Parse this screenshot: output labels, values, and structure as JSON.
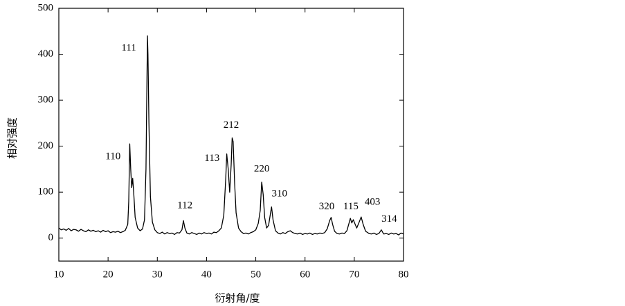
{
  "chart_data": {
    "type": "line",
    "xlabel": "衍射角/度",
    "ylabel": "相对强度",
    "xlim": [
      10,
      80
    ],
    "ylim": [
      -50,
      500
    ],
    "xticks": [
      10,
      20,
      30,
      40,
      50,
      60,
      70,
      80
    ],
    "yticks": [
      0,
      100,
      200,
      300,
      400,
      500
    ],
    "color": "#000000",
    "x": [
      10,
      10.5,
      11,
      11.5,
      12,
      12.5,
      13,
      13.5,
      14,
      14.5,
      15,
      15.5,
      16,
      16.5,
      17,
      17.5,
      18,
      18.5,
      19,
      19.5,
      20,
      20.5,
      21,
      21.5,
      22,
      22.5,
      23,
      23.5,
      24,
      24.2,
      24.4,
      24.6,
      24.8,
      25,
      25.2,
      25.5,
      26,
      26.5,
      27,
      27.4,
      27.7,
      27.9,
      28,
      28.1,
      28.3,
      28.6,
      29,
      29.5,
      30,
      30.5,
      31,
      31.5,
      32,
      32.5,
      33,
      33.5,
      34,
      34.5,
      35,
      35.3,
      35.6,
      36,
      36.5,
      37,
      37.5,
      38,
      38.5,
      39,
      39.5,
      40,
      40.5,
      41,
      41.5,
      42,
      42.5,
      43,
      43.5,
      43.9,
      44.1,
      44.4,
      44.7,
      45,
      45.2,
      45.4,
      45.7,
      46,
      46.5,
      47,
      47.5,
      48,
      48.5,
      49,
      49.5,
      50,
      50.5,
      50.9,
      51.2,
      51.5,
      51.8,
      52.2,
      52.6,
      53,
      53.2,
      53.5,
      54,
      54.5,
      55,
      55.5,
      56,
      56.5,
      57,
      57.5,
      58,
      58.5,
      59,
      59.5,
      60,
      60.5,
      61,
      61.5,
      62,
      62.5,
      63,
      63.5,
      64,
      64.5,
      65,
      65.3,
      65.6,
      66,
      66.5,
      67,
      67.5,
      68,
      68.5,
      69,
      69.2,
      69.5,
      69.8,
      70.1,
      70.5,
      71,
      71.4,
      71.8,
      72.3,
      73,
      73.5,
      74,
      74.5,
      75,
      75.5,
      75.8,
      76,
      76.5,
      77,
      77.5,
      78,
      78.5,
      79,
      79.5,
      80
    ],
    "values": [
      22,
      18,
      20,
      17,
      21,
      16,
      19,
      18,
      15,
      19,
      16,
      14,
      18,
      15,
      17,
      14,
      16,
      13,
      17,
      14,
      16,
      12,
      14,
      13,
      15,
      12,
      14,
      17,
      30,
      80,
      205,
      150,
      110,
      130,
      100,
      45,
      22,
      16,
      20,
      40,
      150,
      350,
      440,
      400,
      250,
      90,
      35,
      18,
      12,
      10,
      13,
      9,
      12,
      10,
      11,
      8,
      12,
      11,
      18,
      38,
      22,
      11,
      9,
      12,
      10,
      8,
      11,
      9,
      12,
      10,
      11,
      9,
      13,
      12,
      16,
      22,
      50,
      130,
      183,
      150,
      100,
      160,
      218,
      210,
      120,
      55,
      22,
      14,
      10,
      11,
      9,
      12,
      14,
      18,
      32,
      60,
      122,
      95,
      45,
      22,
      28,
      55,
      68,
      40,
      16,
      11,
      9,
      12,
      10,
      14,
      16,
      12,
      10,
      9,
      11,
      8,
      10,
      9,
      11,
      8,
      10,
      9,
      11,
      10,
      12,
      20,
      38,
      45,
      30,
      15,
      10,
      9,
      11,
      10,
      16,
      35,
      43,
      33,
      40,
      32,
      22,
      35,
      46,
      30,
      15,
      10,
      9,
      11,
      8,
      10,
      18,
      12,
      9,
      10,
      8,
      11,
      9,
      10,
      7,
      11,
      9
    ],
    "annotations": [
      {
        "text": "110",
        "x": 21.0,
        "y": 177
      },
      {
        "text": "111",
        "x": 24.2,
        "y": 413
      },
      {
        "text": "112",
        "x": 35.6,
        "y": 70
      },
      {
        "text": "113",
        "x": 41.1,
        "y": 173
      },
      {
        "text": "212",
        "x": 45.0,
        "y": 245
      },
      {
        "text": "220",
        "x": 51.2,
        "y": 150
      },
      {
        "text": "310",
        "x": 54.8,
        "y": 96
      },
      {
        "text": "320",
        "x": 64.4,
        "y": 68
      },
      {
        "text": "115",
        "x": 69.3,
        "y": 68
      },
      {
        "text": "403",
        "x": 73.7,
        "y": 78
      },
      {
        "text": "314",
        "x": 77.1,
        "y": 41
      }
    ]
  }
}
